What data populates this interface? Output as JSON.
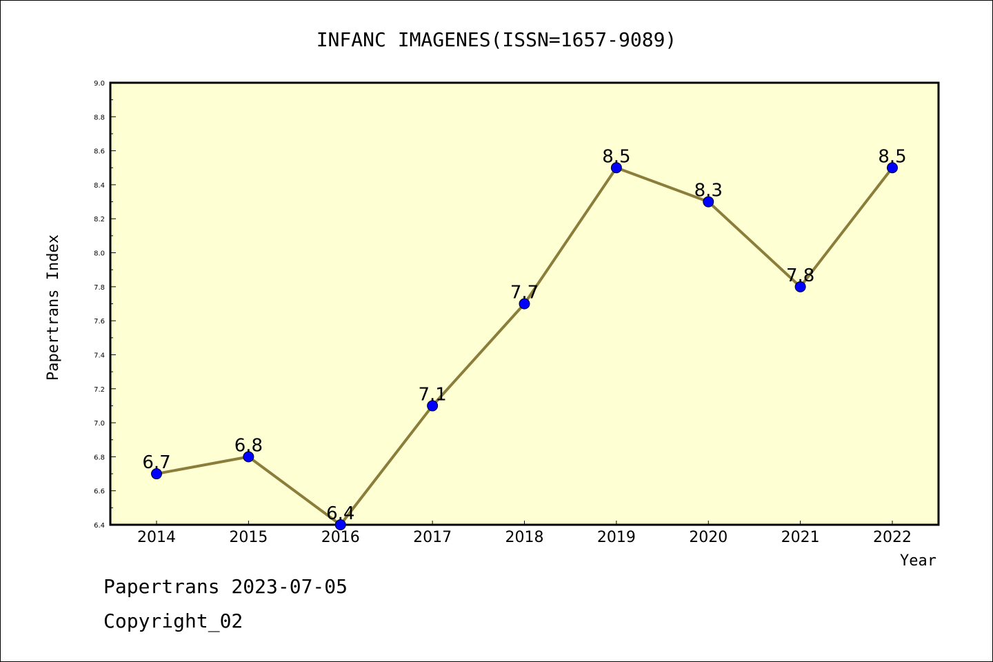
{
  "chart_data": {
    "type": "line",
    "title": "INFANC IMAGENES(ISSN=1657-9089)",
    "xlabel": "Year",
    "ylabel": "Papertrans Index",
    "x": [
      "2014",
      "2015",
      "2016",
      "2017",
      "2018",
      "2019",
      "2020",
      "2021",
      "2022"
    ],
    "series": [
      {
        "values": [
          6.7,
          6.8,
          6.4,
          7.1,
          7.7,
          8.5,
          8.3,
          7.8,
          8.5
        ]
      }
    ],
    "data_labels": [
      "6.7",
      "6.8",
      "6.4",
      "7.1",
      "7.7",
      "8.5",
      "8.3",
      "7.8",
      "8.5"
    ],
    "ylim": [
      6.4,
      9.0
    ],
    "yticks": [
      "6.4",
      "6.6",
      "6.8",
      "7.0",
      "7.2",
      "7.4",
      "7.6",
      "7.8",
      "8.0",
      "8.2",
      "8.4",
      "8.6",
      "8.8",
      "9.0"
    ],
    "grid": false,
    "colors": {
      "plot_bg": "#ffffd4",
      "line": "#8b7d3a",
      "marker": "#0000ff"
    }
  },
  "footer": {
    "line1": "Papertrans 2023-07-05",
    "line2": "Copyright_02"
  }
}
